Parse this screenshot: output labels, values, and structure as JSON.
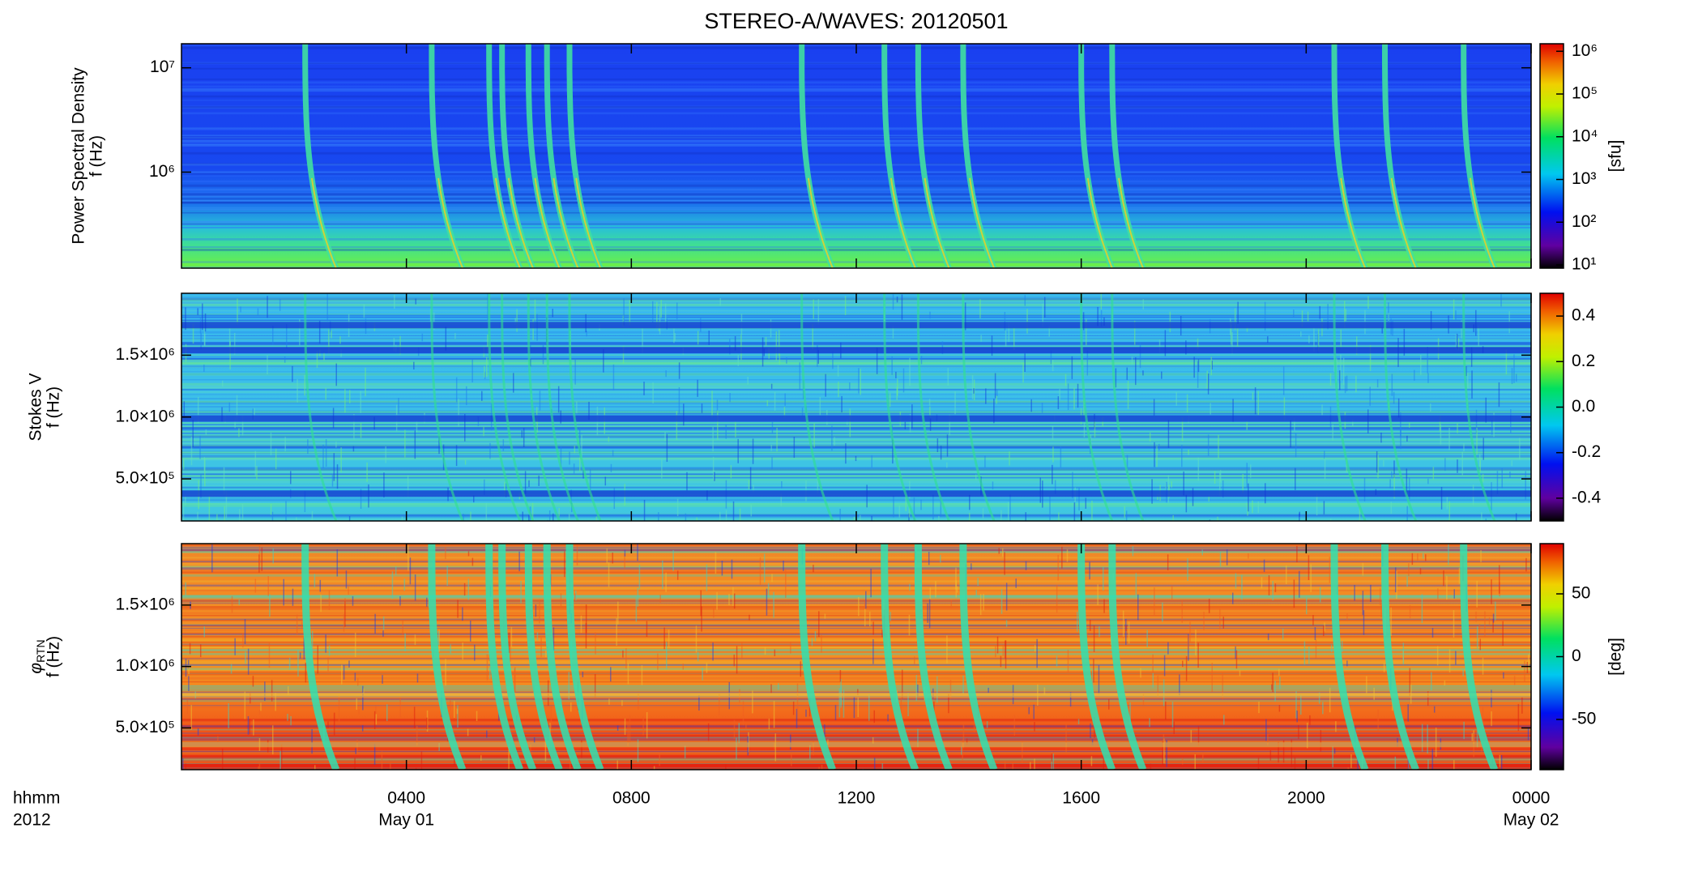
{
  "chart_data": [
    {
      "type": "spectrogram",
      "title": "STEREO-A/WAVES: 20120501",
      "ylabel": [
        "Power Spectral Density",
        "f (Hz)"
      ],
      "ylog": true,
      "ylim": [
        120000,
        17000000
      ],
      "yticks": [
        {
          "value": 1000000,
          "label": "10⁶"
        },
        {
          "value": 10000000,
          "label": "10⁷"
        }
      ],
      "colorbar": {
        "log": true,
        "clim": [
          8.4,
          1500000
        ],
        "ticks": [
          {
            "value": 10,
            "label": "10¹"
          },
          {
            "value": 100,
            "label": "10²"
          },
          {
            "value": 1000,
            "label": "10³"
          },
          {
            "value": 10000,
            "label": "10⁴"
          },
          {
            "value": 100000,
            "label": "10⁵"
          },
          {
            "value": 1000000,
            "label": "10⁶"
          }
        ],
        "label": "[sfu]"
      },
      "bursts": [
        2.2,
        4.45,
        5.47,
        5.7,
        6.17,
        6.5,
        6.9,
        11.03,
        12.5,
        13.1,
        13.9,
        16.0,
        16.55,
        20.5,
        21.4,
        22.8
      ]
    },
    {
      "type": "spectrogram",
      "ylabel": [
        "Stokes V",
        "f (Hz)"
      ],
      "ylog": false,
      "ylim": [
        160000,
        2000000
      ],
      "yticks": [
        {
          "value": 500000,
          "label": "5.0×10⁵"
        },
        {
          "value": 1000000,
          "label": "1.0×10⁶"
        },
        {
          "value": 1500000,
          "label": "1.5×10⁶"
        }
      ],
      "colorbar": {
        "log": false,
        "clim": [
          -0.5,
          0.5
        ],
        "ticks": [
          -0.4,
          -0.2,
          {
            "value": 0,
            "label": "0.0"
          },
          0.2,
          0.4
        ]
      }
    },
    {
      "type": "spectrogram",
      "ylabel_symbol": "φ",
      "ylabel_sub": "RTN",
      "ylabel2": "f (Hz)",
      "ylog": false,
      "ylim": [
        160000,
        2000000
      ],
      "yticks": [
        {
          "value": 500000,
          "label": "5.0×10⁵"
        },
        {
          "value": 1000000,
          "label": "1.0×10⁶"
        },
        {
          "value": 1500000,
          "label": "1.5×10⁶"
        }
      ],
      "colorbar": {
        "log": false,
        "clim": [
          -90,
          90
        ],
        "ticks": [
          -50,
          0,
          50
        ],
        "label": "[deg]"
      },
      "xlim": [
        0,
        24
      ],
      "xticks": [
        {
          "value": 4,
          "label": "0400"
        },
        {
          "value": 8,
          "label": "0800"
        },
        {
          "value": 12,
          "label": "1200"
        },
        {
          "value": 16,
          "label": "1600"
        },
        {
          "value": 20,
          "label": "2000"
        },
        {
          "value": 24,
          "label": "0000"
        }
      ],
      "date_labels": [
        {
          "value": 4,
          "label": "May 01"
        },
        {
          "value": 24,
          "label": "May 02"
        }
      ],
      "row_labels": [
        "hhmm",
        "2012"
      ]
    }
  ]
}
